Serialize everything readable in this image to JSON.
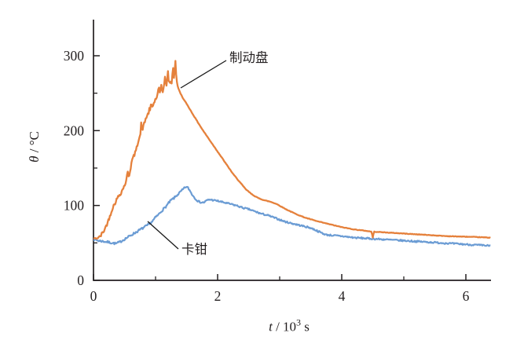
{
  "figure": {
    "background": "#ffffff",
    "axis_color": "#231f20",
    "annotation_line_color": "#1a1a1a"
  },
  "chart_data": {
    "type": "line",
    "title": "",
    "xlabel": "t / 10³ s",
    "ylabel": "θ / °C",
    "xlabel_parts": {
      "var": "t",
      "mid": " / 10",
      "exp": "3",
      "unit": " s"
    },
    "ylabel_parts": {
      "var": "θ",
      "rest": " / °C"
    },
    "xlim": [
      0,
      6.4
    ],
    "ylim": [
      0,
      350
    ],
    "grid": false,
    "legend_position": "inline-annotations",
    "xticks": {
      "major": [
        0,
        2,
        4,
        6
      ],
      "minor": [
        1,
        3,
        5
      ],
      "labels": [
        "0",
        "2",
        "4",
        "6"
      ]
    },
    "yticks": {
      "major": [
        0,
        100,
        200,
        300
      ],
      "minor": [
        50,
        150,
        250
      ],
      "labels": [
        "0",
        "100",
        "200",
        "300"
      ]
    },
    "series": [
      {
        "name": "制动盘",
        "color": "#E5813C",
        "peak": {
          "t": 1.32,
          "theta": 294
        },
        "points": [
          [
            0,
            56
          ],
          [
            0.06,
            56
          ],
          [
            0.12,
            60
          ],
          [
            0.18,
            68
          ],
          [
            0.24,
            80
          ],
          [
            0.3,
            95
          ],
          [
            0.35,
            104
          ],
          [
            0.4,
            112
          ],
          [
            0.45,
            118
          ],
          [
            0.5,
            127
          ],
          [
            0.53,
            133
          ],
          [
            0.55,
            146
          ],
          [
            0.57,
            138
          ],
          [
            0.62,
            160
          ],
          [
            0.67,
            170
          ],
          [
            0.7,
            178
          ],
          [
            0.73,
            190
          ],
          [
            0.76,
            196
          ],
          [
            0.77,
            214
          ],
          [
            0.78,
            200
          ],
          [
            0.82,
            210
          ],
          [
            0.85,
            218
          ],
          [
            0.88,
            222
          ],
          [
            0.9,
            228
          ],
          [
            0.92,
            226
          ],
          [
            0.93,
            243
          ],
          [
            0.94,
            230
          ],
          [
            0.97,
            236
          ],
          [
            1.0,
            242
          ],
          [
            1.03,
            246
          ],
          [
            1.05,
            258
          ],
          [
            1.07,
            248
          ],
          [
            1.09,
            262
          ],
          [
            1.11,
            252
          ],
          [
            1.13,
            256
          ],
          [
            1.15,
            272
          ],
          [
            1.17,
            258
          ],
          [
            1.2,
            278
          ],
          [
            1.22,
            262
          ],
          [
            1.24,
            266
          ],
          [
            1.26,
            262
          ],
          [
            1.28,
            288
          ],
          [
            1.3,
            268
          ],
          [
            1.32,
            294
          ],
          [
            1.34,
            266
          ],
          [
            1.36,
            258
          ],
          [
            1.4,
            250
          ],
          [
            1.45,
            242
          ],
          [
            1.5,
            236
          ],
          [
            1.6,
            222
          ],
          [
            1.66,
            214
          ],
          [
            1.75,
            202
          ],
          [
            1.85,
            190
          ],
          [
            1.95,
            178
          ],
          [
            2.05,
            166
          ],
          [
            2.15,
            154
          ],
          [
            2.25,
            142
          ],
          [
            2.35,
            132
          ],
          [
            2.45,
            122
          ],
          [
            2.55,
            115
          ],
          [
            2.65,
            110
          ],
          [
            2.75,
            107
          ],
          [
            2.85,
            105
          ],
          [
            2.95,
            102
          ],
          [
            3.1,
            95
          ],
          [
            3.25,
            89
          ],
          [
            3.4,
            84
          ],
          [
            3.6,
            79
          ],
          [
            3.8,
            75
          ],
          [
            4.0,
            71
          ],
          [
            4.2,
            68
          ],
          [
            4.4,
            66
          ],
          [
            4.48,
            65
          ],
          [
            4.5,
            57
          ],
          [
            4.52,
            65
          ],
          [
            4.7,
            64
          ],
          [
            4.9,
            63
          ],
          [
            5.1,
            62
          ],
          [
            5.3,
            61
          ],
          [
            5.5,
            60
          ],
          [
            5.7,
            59
          ],
          [
            5.9,
            58.5
          ],
          [
            6.1,
            58
          ],
          [
            6.25,
            57.5
          ],
          [
            6.4,
            57
          ]
        ]
      },
      {
        "name": "卡钳",
        "color": "#6B9CD4",
        "peak": {
          "t": 1.49,
          "theta": 125
        },
        "points": [
          [
            0,
            55
          ],
          [
            0.08,
            53
          ],
          [
            0.16,
            52
          ],
          [
            0.24,
            51
          ],
          [
            0.3,
            50
          ],
          [
            0.36,
            49
          ],
          [
            0.42,
            51
          ],
          [
            0.5,
            55
          ],
          [
            0.58,
            59
          ],
          [
            0.66,
            63
          ],
          [
            0.74,
            67
          ],
          [
            0.82,
            71
          ],
          [
            0.9,
            75
          ],
          [
            0.96,
            80
          ],
          [
            1.0,
            84
          ],
          [
            1.05,
            88
          ],
          [
            1.1,
            93
          ],
          [
            1.15,
            97
          ],
          [
            1.2,
            102
          ],
          [
            1.25,
            107
          ],
          [
            1.3,
            110
          ],
          [
            1.35,
            114
          ],
          [
            1.4,
            118
          ],
          [
            1.45,
            122
          ],
          [
            1.49,
            125
          ],
          [
            1.53,
            123
          ],
          [
            1.58,
            116
          ],
          [
            1.63,
            110
          ],
          [
            1.68,
            106
          ],
          [
            1.73,
            104
          ],
          [
            1.78,
            104
          ],
          [
            1.83,
            107
          ],
          [
            1.88,
            108
          ],
          [
            1.93,
            107
          ],
          [
            2.0,
            106
          ],
          [
            2.1,
            104
          ],
          [
            2.2,
            102
          ],
          [
            2.3,
            100
          ],
          [
            2.4,
            97
          ],
          [
            2.5,
            95
          ],
          [
            2.6,
            92
          ],
          [
            2.7,
            89
          ],
          [
            2.8,
            87
          ],
          [
            2.9,
            84
          ],
          [
            3.0,
            81
          ],
          [
            3.1,
            78
          ],
          [
            3.2,
            76
          ],
          [
            3.3,
            74
          ],
          [
            3.4,
            72
          ],
          [
            3.5,
            70
          ],
          [
            3.58,
            67
          ],
          [
            3.66,
            64
          ],
          [
            3.74,
            61
          ],
          [
            3.85,
            60
          ],
          [
            4.0,
            59
          ],
          [
            4.2,
            57
          ],
          [
            4.4,
            56
          ],
          [
            4.6,
            55
          ],
          [
            4.8,
            54
          ],
          [
            5.0,
            53
          ],
          [
            5.2,
            52
          ],
          [
            5.4,
            51
          ],
          [
            5.6,
            50
          ],
          [
            5.8,
            49
          ],
          [
            6.0,
            48
          ],
          [
            6.2,
            47
          ],
          [
            6.4,
            46
          ]
        ]
      }
    ],
    "annotations": [
      {
        "text": "制动盘",
        "series": "制动盘"
      },
      {
        "text": "卡钳",
        "series": "卡钳"
      }
    ]
  }
}
